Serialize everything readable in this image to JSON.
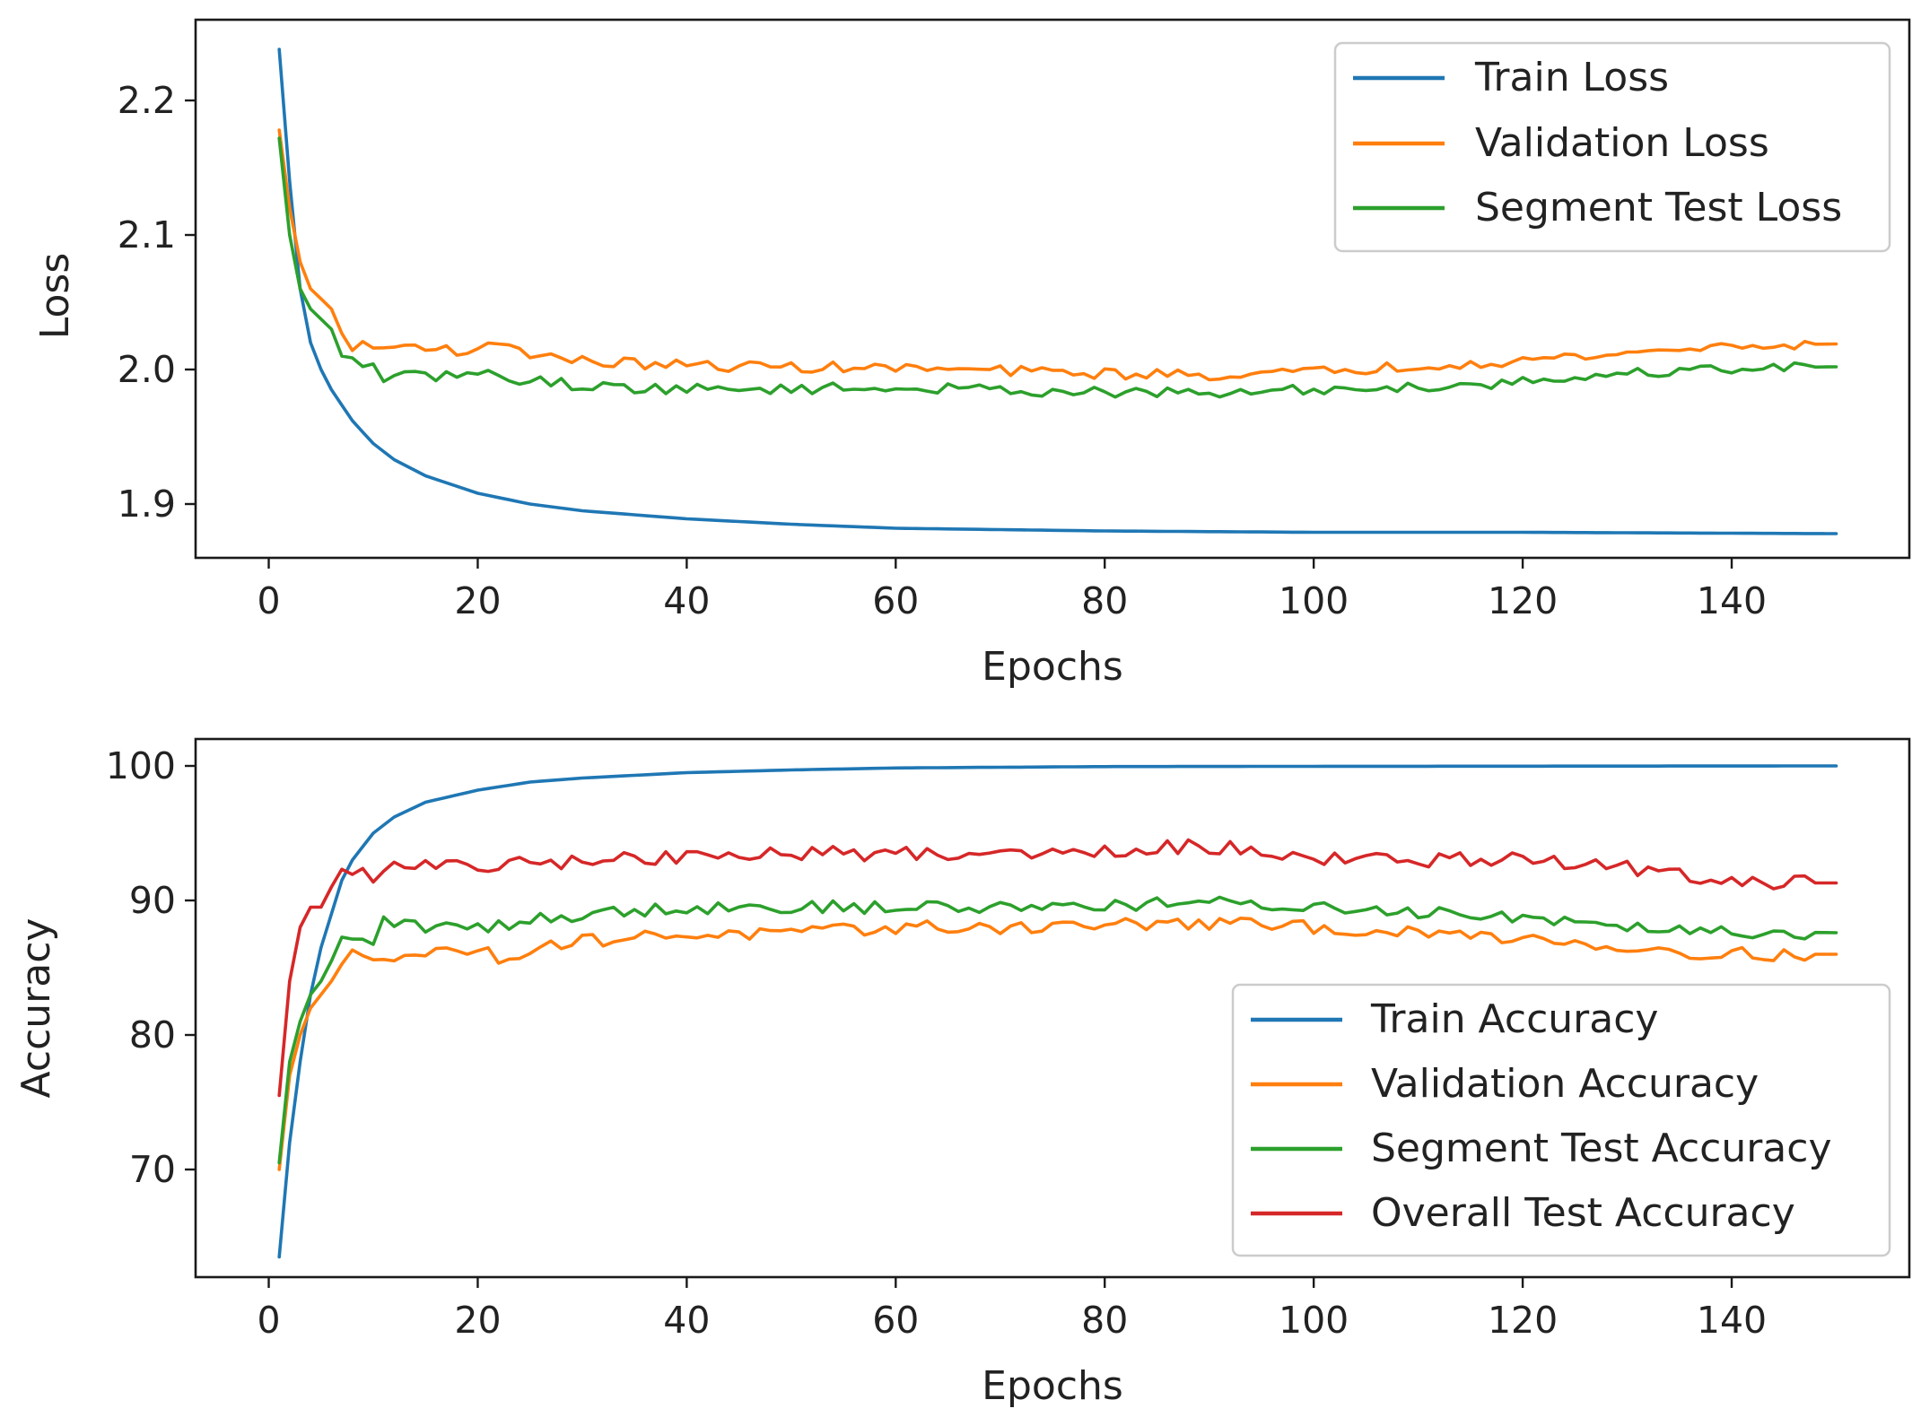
{
  "chart_data": [
    {
      "type": "line",
      "title": "",
      "xlabel": "Epochs",
      "ylabel": "Loss",
      "xlim": [
        -7,
        157
      ],
      "ylim": [
        1.86,
        2.26
      ],
      "x_ticks": [
        0,
        20,
        40,
        60,
        80,
        100,
        120,
        140
      ],
      "y_ticks": [
        1.9,
        2.0,
        2.1,
        2.2
      ],
      "y_tick_labels": [
        "1.9",
        "2.0",
        "2.1",
        "2.2"
      ],
      "legend_position": "top-right",
      "grid": false,
      "x_range": [
        1,
        150
      ],
      "series": [
        {
          "name": "Train Loss",
          "color": "#1f77b4",
          "keypoints": [
            [
              1,
              2.238
            ],
            [
              2,
              2.14
            ],
            [
              3,
              2.06
            ],
            [
              4,
              2.02
            ],
            [
              5,
              2.0
            ],
            [
              6,
              1.985
            ],
            [
              8,
              1.962
            ],
            [
              10,
              1.945
            ],
            [
              12,
              1.933
            ],
            [
              15,
              1.921
            ],
            [
              20,
              1.908
            ],
            [
              25,
              1.9
            ],
            [
              30,
              1.895
            ],
            [
              40,
              1.889
            ],
            [
              50,
              1.885
            ],
            [
              60,
              1.882
            ],
            [
              70,
              1.881
            ],
            [
              80,
              1.88
            ],
            [
              100,
              1.879
            ],
            [
              120,
              1.879
            ],
            [
              150,
              1.878
            ]
          ],
          "noise": 0.0
        },
        {
          "name": "Validation Loss",
          "color": "#ff7f0e",
          "keypoints": [
            [
              1,
              2.178
            ],
            [
              2,
              2.12
            ],
            [
              3,
              2.08
            ],
            [
              4,
              2.06
            ],
            [
              6,
              2.045
            ],
            [
              7,
              2.025
            ],
            [
              8,
              2.018
            ],
            [
              10,
              2.016
            ],
            [
              15,
              2.018
            ],
            [
              20,
              2.012
            ],
            [
              22,
              2.022
            ],
            [
              25,
              2.012
            ],
            [
              30,
              2.006
            ],
            [
              40,
              2.003
            ],
            [
              50,
              2.002
            ],
            [
              60,
              2.001
            ],
            [
              70,
              1.999
            ],
            [
              80,
              1.997
            ],
            [
              90,
              1.996
            ],
            [
              100,
              1.998
            ],
            [
              110,
              2.003
            ],
            [
              120,
              2.007
            ],
            [
              130,
              2.012
            ],
            [
              140,
              2.018
            ],
            [
              150,
              2.019
            ]
          ],
          "noise": 0.004
        },
        {
          "name": "Segment Test Loss",
          "color": "#2ca02c",
          "keypoints": [
            [
              1,
              2.172
            ],
            [
              2,
              2.1
            ],
            [
              3,
              2.06
            ],
            [
              4,
              2.045
            ],
            [
              6,
              2.03
            ],
            [
              7,
              2.008
            ],
            [
              8,
              2.006
            ],
            [
              10,
              2.003
            ],
            [
              11,
              1.994
            ],
            [
              15,
              1.995
            ],
            [
              20,
              1.997
            ],
            [
              25,
              1.992
            ],
            [
              30,
              1.988
            ],
            [
              40,
              1.985
            ],
            [
              50,
              1.986
            ],
            [
              60,
              1.986
            ],
            [
              70,
              1.985
            ],
            [
              80,
              1.983
            ],
            [
              90,
              1.982
            ],
            [
              100,
              1.985
            ],
            [
              110,
              1.987
            ],
            [
              120,
              1.991
            ],
            [
              130,
              1.997
            ],
            [
              140,
              2.001
            ],
            [
              150,
              2.002
            ]
          ],
          "noise": 0.004
        }
      ]
    },
    {
      "type": "line",
      "title": "",
      "xlabel": "Epochs",
      "ylabel": "Accuracy",
      "xlim": [
        -7,
        157
      ],
      "ylim": [
        62,
        102
      ],
      "x_ticks": [
        0,
        20,
        40,
        60,
        80,
        100,
        120,
        140
      ],
      "y_ticks": [
        70,
        80,
        90,
        100
      ],
      "y_tick_labels": [
        "70",
        "80",
        "90",
        "100"
      ],
      "legend_position": "lower-right",
      "grid": false,
      "x_range": [
        1,
        150
      ],
      "series": [
        {
          "name": "Train Accuracy",
          "color": "#1f77b4",
          "keypoints": [
            [
              1,
              63.5
            ],
            [
              2,
              72
            ],
            [
              3,
              78
            ],
            [
              4,
              83
            ],
            [
              5,
              86.5
            ],
            [
              6,
              89
            ],
            [
              7,
              91.5
            ],
            [
              8,
              93
            ],
            [
              10,
              95
            ],
            [
              12,
              96.2
            ],
            [
              15,
              97.3
            ],
            [
              20,
              98.2
            ],
            [
              25,
              98.8
            ],
            [
              30,
              99.1
            ],
            [
              40,
              99.5
            ],
            [
              50,
              99.7
            ],
            [
              60,
              99.85
            ],
            [
              80,
              99.95
            ],
            [
              100,
              99.97
            ],
            [
              150,
              100.0
            ]
          ],
          "noise": 0.0
        },
        {
          "name": "Validation Accuracy",
          "color": "#ff7f0e",
          "keypoints": [
            [
              1,
              70
            ],
            [
              2,
              77
            ],
            [
              3,
              80
            ],
            [
              4,
              82
            ],
            [
              5,
              83
            ],
            [
              7,
              85
            ],
            [
              8,
              86
            ],
            [
              10,
              86
            ],
            [
              15,
              86
            ],
            [
              20,
              86.5
            ],
            [
              22,
              85.5
            ],
            [
              25,
              86.5
            ],
            [
              30,
              87
            ],
            [
              40,
              87.5
            ],
            [
              50,
              87.5
            ],
            [
              60,
              88
            ],
            [
              70,
              88
            ],
            [
              80,
              88.2
            ],
            [
              90,
              88.3
            ],
            [
              100,
              88
            ],
            [
              110,
              87.5
            ],
            [
              120,
              87.3
            ],
            [
              130,
              86.5
            ],
            [
              140,
              86
            ],
            [
              150,
              86
            ]
          ],
          "noise": 0.5
        },
        {
          "name": "Segment Test Accuracy",
          "color": "#2ca02c",
          "keypoints": [
            [
              1,
              70.5
            ],
            [
              2,
              78
            ],
            [
              3,
              81
            ],
            [
              4,
              83
            ],
            [
              5,
              84
            ],
            [
              7,
              87
            ],
            [
              8,
              87
            ],
            [
              10,
              87
            ],
            [
              11,
              88.5
            ],
            [
              15,
              88
            ],
            [
              20,
              88
            ],
            [
              25,
              88.5
            ],
            [
              30,
              89
            ],
            [
              40,
              89.5
            ],
            [
              50,
              89.5
            ],
            [
              60,
              89.5
            ],
            [
              70,
              89.5
            ],
            [
              80,
              89.7
            ],
            [
              90,
              89.8
            ],
            [
              100,
              89.5
            ],
            [
              110,
              89.2
            ],
            [
              120,
              88.8
            ],
            [
              130,
              88.2
            ],
            [
              140,
              87.7
            ],
            [
              150,
              87.6
            ]
          ],
          "noise": 0.5
        },
        {
          "name": "Overall Test Accuracy",
          "color": "#d62728",
          "keypoints": [
            [
              1,
              75.5
            ],
            [
              2,
              84
            ],
            [
              3,
              88
            ],
            [
              4,
              89.5
            ],
            [
              5,
              89.5
            ],
            [
              6,
              91
            ],
            [
              7,
              92
            ],
            [
              9,
              92
            ],
            [
              10,
              91.5
            ],
            [
              12,
              93
            ],
            [
              15,
              92.5
            ],
            [
              20,
              92.5
            ],
            [
              30,
              93
            ],
            [
              40,
              93.2
            ],
            [
              50,
              93.5
            ],
            [
              60,
              93.5
            ],
            [
              70,
              93.5
            ],
            [
              80,
              93.8
            ],
            [
              90,
              94
            ],
            [
              95,
              93.8
            ],
            [
              100,
              93.2
            ],
            [
              110,
              93
            ],
            [
              120,
              93
            ],
            [
              130,
              92.5
            ],
            [
              135,
              91.8
            ],
            [
              140,
              91.3
            ],
            [
              150,
              91.3
            ]
          ],
          "noise": 0.55
        }
      ]
    }
  ]
}
